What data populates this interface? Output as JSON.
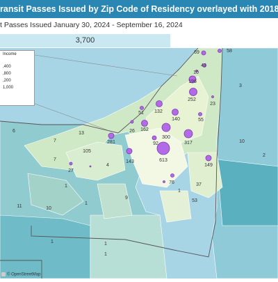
{
  "header": {
    "title_visible": "ransit Passes Issued by Zip Code of Residency overlayed with 2018 Per Capita Income",
    "subtitle_visible": "t Passes Issued January 30, 2024 - September 16, 2024",
    "total_passes": "3,700"
  },
  "legend": {
    "title_visible": "Income",
    "items_visible": [
      ",400",
      ",800",
      ",200",
      "1,000"
    ]
  },
  "attribution": {
    "text": "© OpenStreetMap"
  },
  "map_labels": [
    {
      "id": "c69",
      "value": "69"
    },
    {
      "id": "c58",
      "value": "58"
    },
    {
      "id": "c43",
      "value": "43"
    },
    {
      "id": "c10a",
      "value": "10"
    },
    {
      "id": "c196",
      "value": "196"
    },
    {
      "id": "c3",
      "value": "3"
    },
    {
      "id": "c252",
      "value": "252"
    },
    {
      "id": "c23",
      "value": "23"
    },
    {
      "id": "c51",
      "value": "51"
    },
    {
      "id": "c132",
      "value": "132"
    },
    {
      "id": "c140",
      "value": "140"
    },
    {
      "id": "c55",
      "value": "55"
    },
    {
      "id": "c6",
      "value": "6"
    },
    {
      "id": "c13",
      "value": "13"
    },
    {
      "id": "c26",
      "value": "26"
    },
    {
      "id": "c162",
      "value": "162"
    },
    {
      "id": "c300",
      "value": "300"
    },
    {
      "id": "c317",
      "value": "317"
    },
    {
      "id": "c10b",
      "value": "10"
    },
    {
      "id": "c7a",
      "value": "7"
    },
    {
      "id": "c105",
      "value": "105"
    },
    {
      "id": "c281",
      "value": "281"
    },
    {
      "id": "c92",
      "value": "92"
    },
    {
      "id": "c7b",
      "value": "7"
    },
    {
      "id": "c143",
      "value": "143"
    },
    {
      "id": "c613",
      "value": "613"
    },
    {
      "id": "c2",
      "value": "2"
    },
    {
      "id": "c27",
      "value": "27"
    },
    {
      "id": "c149",
      "value": "149"
    },
    {
      "id": "c4",
      "value": "4"
    },
    {
      "id": "c1a",
      "value": "1"
    },
    {
      "id": "c76",
      "value": "76"
    },
    {
      "id": "c37",
      "value": "37"
    },
    {
      "id": "c9",
      "value": "9"
    },
    {
      "id": "c1b",
      "value": "1"
    },
    {
      "id": "c11",
      "value": "11"
    },
    {
      "id": "c10c",
      "value": "10"
    },
    {
      "id": "c1c",
      "value": "1"
    },
    {
      "id": "c53",
      "value": "53"
    },
    {
      "id": "c1d",
      "value": "1"
    },
    {
      "id": "c1e",
      "value": "1"
    },
    {
      "id": "c1f",
      "value": "1"
    }
  ],
  "colors": {
    "title_bg": "#2a86b3",
    "lake": "#a7d5e6",
    "income_low": "#e8f3d4",
    "income_mid": "#9fd2cf",
    "income_high": "#3ea7b7",
    "bubble": "#b36ae6"
  }
}
